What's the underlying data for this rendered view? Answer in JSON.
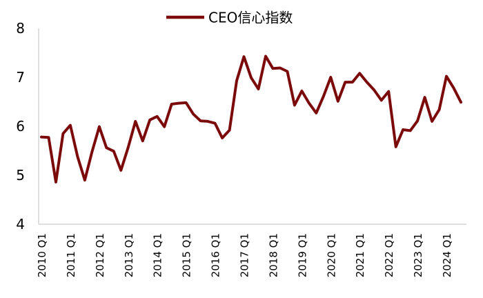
{
  "chart_data": {
    "type": "line",
    "title": "",
    "xlabel": "",
    "ylabel": "",
    "ylim": [
      4,
      8
    ],
    "y_ticks": [
      4,
      5,
      6,
      7,
      8
    ],
    "grid": false,
    "legend_position": "top-center",
    "x_tick_labels": [
      "2010 Q1",
      "2011 Q1",
      "2012 Q1",
      "2013 Q1",
      "2014 Q1",
      "2015 Q1",
      "2016 Q1",
      "2017 Q1",
      "2018 Q1",
      "2019 Q1",
      "2020 Q1",
      "2021 Q1",
      "2022 Q1",
      "2023 Q1",
      "2024 Q1"
    ],
    "x": [
      "2010 Q1",
      "2010 Q2",
      "2010 Q3",
      "2010 Q4",
      "2011 Q1",
      "2011 Q2",
      "2011 Q3",
      "2011 Q4",
      "2012 Q1",
      "2012 Q2",
      "2012 Q3",
      "2012 Q4",
      "2013 Q1",
      "2013 Q2",
      "2013 Q3",
      "2013 Q4",
      "2014 Q1",
      "2014 Q2",
      "2014 Q3",
      "2014 Q4",
      "2015 Q1",
      "2015 Q2",
      "2015 Q3",
      "2015 Q4",
      "2016 Q1",
      "2016 Q2",
      "2016 Q3",
      "2016 Q4",
      "2017 Q1",
      "2017 Q2",
      "2017 Q3",
      "2017 Q4",
      "2018 Q1",
      "2018 Q2",
      "2018 Q3",
      "2018 Q4",
      "2019 Q1",
      "2019 Q2",
      "2019 Q3",
      "2019 Q4",
      "2020 Q1",
      "2020 Q2",
      "2020 Q3",
      "2020 Q4",
      "2021 Q1",
      "2021 Q2",
      "2021 Q3",
      "2021 Q4",
      "2022 Q1",
      "2022 Q2",
      "2022 Q3",
      "2022 Q4",
      "2023 Q1",
      "2023 Q2",
      "2023 Q3",
      "2023 Q4",
      "2024 Q1",
      "2024 Q2",
      "2024 Q3"
    ],
    "series": [
      {
        "name": "CEO信心指数",
        "color": "#7b0a0a",
        "values": [
          5.78,
          5.77,
          4.86,
          5.85,
          6.02,
          5.38,
          4.9,
          5.48,
          5.99,
          5.56,
          5.49,
          5.1,
          5.57,
          6.1,
          5.7,
          6.13,
          6.2,
          5.99,
          6.45,
          6.47,
          6.48,
          6.25,
          6.11,
          6.1,
          6.06,
          5.76,
          5.92,
          6.93,
          7.42,
          6.99,
          6.76,
          7.43,
          7.18,
          7.19,
          7.12,
          6.43,
          6.72,
          6.47,
          6.27,
          6.61,
          7.0,
          6.51,
          6.9,
          6.9,
          7.08,
          6.9,
          6.74,
          6.53,
          6.71,
          5.58,
          5.93,
          5.91,
          6.11,
          6.59,
          6.1,
          6.34,
          7.02,
          6.78,
          6.49
        ]
      }
    ]
  }
}
